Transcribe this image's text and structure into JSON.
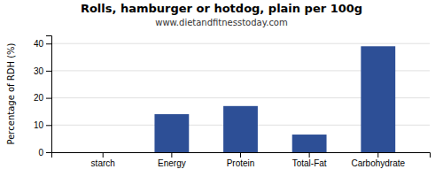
{
  "chart_data": {
    "type": "bar",
    "title": "Rolls, hamburger or hotdog, plain per 100g",
    "subtitle": "www.dietandfitnesstoday.com",
    "ylabel": "Percentage of RDH (%)",
    "categories": [
      "starch",
      "Energy",
      "Protein",
      "Total-Fat",
      "Carbohydrate"
    ],
    "values": [
      0,
      14,
      17,
      6.5,
      39
    ],
    "color": "#2d4f96",
    "ylim": [
      0,
      43
    ],
    "yticks": [
      0,
      10,
      20,
      30,
      40
    ],
    "grid": true
  }
}
